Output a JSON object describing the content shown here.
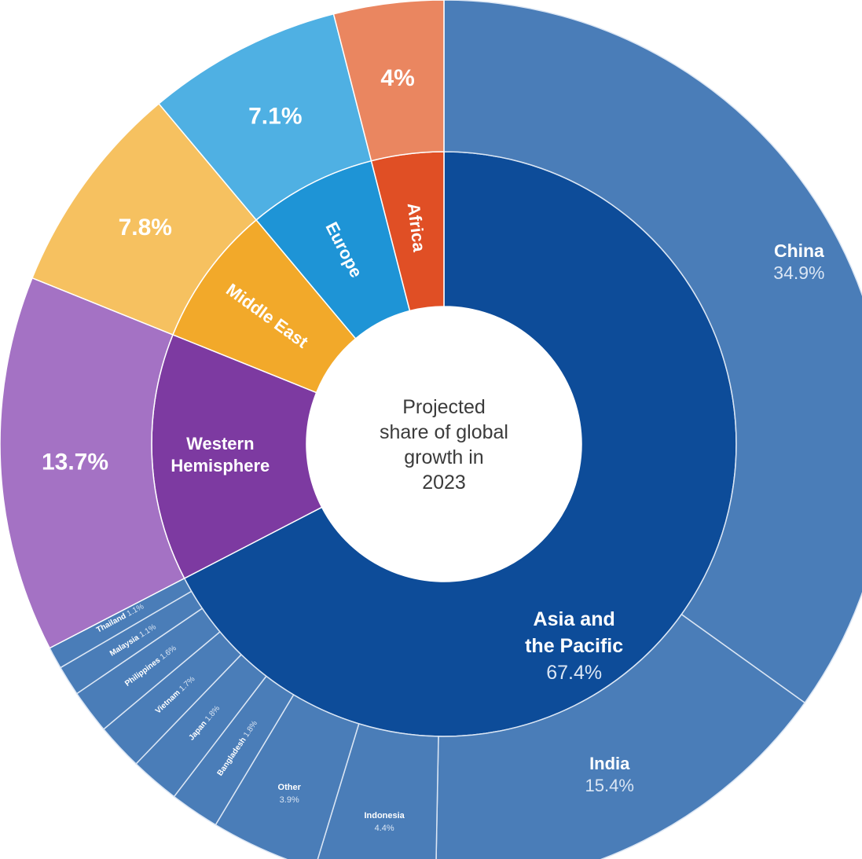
{
  "chart_data": {
    "type": "sunburst",
    "title": "Projected share of global growth in 2023",
    "center_lines": [
      "Projected",
      "share of global",
      "growth in",
      "2023"
    ],
    "unit": "%",
    "regions": [
      {
        "name": "Asia and the Pacific",
        "name_lines": [
          "Asia and",
          "the Pacific"
        ],
        "value": 67.4,
        "value_label": "67.4%",
        "color": "#0d4c99",
        "ring_color": "#4a7db8",
        "children": [
          {
            "name": "China",
            "value": 34.9,
            "value_label": "34.9%"
          },
          {
            "name": "India",
            "value": 15.4,
            "value_label": "15.4%"
          },
          {
            "name": "Indonesia",
            "value": 4.4,
            "value_label": "4.4%"
          },
          {
            "name": "Other",
            "value": 3.9,
            "value_label": "3.9%"
          },
          {
            "name": "Bangladesh",
            "value": 1.8,
            "value_label": "1.8%"
          },
          {
            "name": "Japan",
            "value": 1.8,
            "value_label": "1.8%"
          },
          {
            "name": "Vietnam",
            "value": 1.7,
            "value_label": "1.7%"
          },
          {
            "name": "Philippines",
            "value": 1.6,
            "value_label": "1.6%"
          },
          {
            "name": "Malaysia",
            "value": 1.1,
            "value_label": "1.1%"
          },
          {
            "name": "Thailand",
            "value": 1.1,
            "value_label": "1.1%"
          }
        ]
      },
      {
        "name": "Western Hemisphere",
        "name_lines": [
          "Western",
          "Hemisphere"
        ],
        "value": 13.7,
        "value_label": "13.7%",
        "color": "#7d3aa1",
        "ring_color": "#a472c4",
        "children": []
      },
      {
        "name": "Middle East",
        "name_lines": [
          "Middle East"
        ],
        "value": 7.8,
        "value_label": "7.8%",
        "color": "#f2a92a",
        "ring_color": "#f6c160",
        "children": []
      },
      {
        "name": "Europe",
        "name_lines": [
          "Europe"
        ],
        "value": 7.1,
        "value_label": "7.1%",
        "color": "#1e94d6",
        "ring_color": "#4fb0e3",
        "children": []
      },
      {
        "name": "Africa",
        "name_lines": [
          "Africa"
        ],
        "value": 4.0,
        "value_label": "4%",
        "color": "#e04f25",
        "ring_color": "#ea8660",
        "children": []
      }
    ]
  }
}
